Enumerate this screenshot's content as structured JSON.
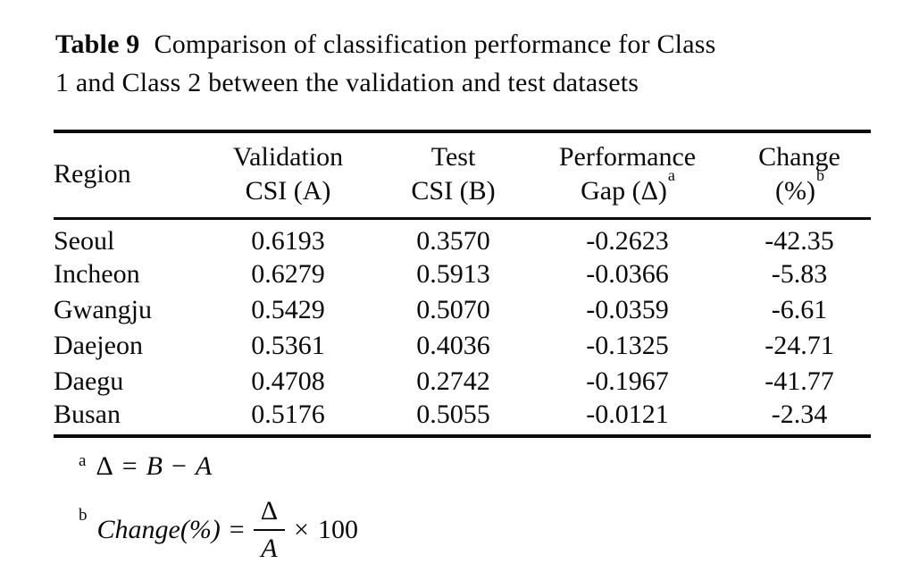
{
  "caption": {
    "label": "Table 9",
    "line1": "Comparison of classification performance for Class",
    "line2": "1 and Class 2 between the validation and test datasets"
  },
  "table": {
    "columns": [
      {
        "line1": "Region"
      },
      {
        "line1": "Validation",
        "line2": "CSI (A)"
      },
      {
        "line1": "Test",
        "line2": "CSI (B)"
      },
      {
        "line1": "Performance",
        "line2": "Gap (Δ)",
        "sup": "a"
      },
      {
        "line1": "Change",
        "line2": "(%)",
        "sup": "b"
      }
    ],
    "rows": [
      {
        "region": "Seoul",
        "validation_csi": "0.6193",
        "test_csi": "0.3570",
        "gap": "-0.2623",
        "change": "-42.35"
      },
      {
        "region": "Incheon",
        "validation_csi": "0.6279",
        "test_csi": "0.5913",
        "gap": "-0.0366",
        "change": "-5.83"
      },
      {
        "region": "Gwangju",
        "validation_csi": "0.5429",
        "test_csi": "0.5070",
        "gap": "-0.0359",
        "change": "-6.61"
      },
      {
        "region": "Daejeon",
        "validation_csi": "0.5361",
        "test_csi": "0.4036",
        "gap": "-0.1325",
        "change": "-24.71"
      },
      {
        "region": "Daegu",
        "validation_csi": "0.4708",
        "test_csi": "0.2742",
        "gap": "-0.1967",
        "change": "-41.77"
      },
      {
        "region": "Busan",
        "validation_csi": "0.5176",
        "test_csi": "0.5055",
        "gap": "-0.0121",
        "change": "-2.34"
      }
    ]
  },
  "footnotes": {
    "a": {
      "marker": "a",
      "lhs": "Δ",
      "equals": "=",
      "operand_b": "B",
      "minus": "−",
      "operand_a": "A"
    },
    "b": {
      "marker": "b",
      "lhs": "Change(%)",
      "equals": "=",
      "numerator": "Δ",
      "denominator": "A",
      "times": "×",
      "factor": "100"
    }
  }
}
